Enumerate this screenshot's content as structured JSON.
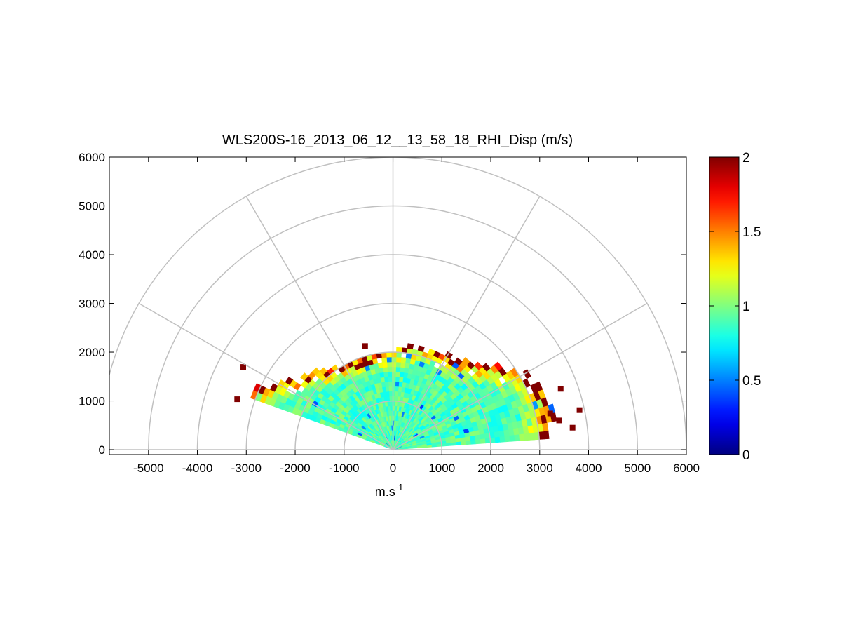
{
  "chart_data": {
    "type": "heatmap",
    "subtype": "polar RHI sector plot",
    "title": "WLS200S-16_2013_06_12__13_58_18_RHI_Disp (m/s)",
    "xlabel": "m.s",
    "xlabel_superscript": "-1",
    "ylabel": "",
    "xlim": [
      -5800,
      6000
    ],
    "ylim": [
      -100,
      6000
    ],
    "x_ticks": [
      "-5000",
      "-4000",
      "-3000",
      "-2000",
      "-1000",
      "0",
      "1000",
      "2000",
      "3000",
      "4000",
      "5000",
      "6000"
    ],
    "x_tick_values": [
      -5000,
      -4000,
      -3000,
      -2000,
      -1000,
      0,
      1000,
      2000,
      3000,
      4000,
      5000,
      6000
    ],
    "y_ticks": [
      "0",
      "1000",
      "2000",
      "3000",
      "4000",
      "5000",
      "6000"
    ],
    "y_tick_values": [
      0,
      1000,
      2000,
      3000,
      4000,
      5000,
      6000
    ],
    "polar_grid": {
      "ring_radii": [
        1000,
        2000,
        3000,
        4000,
        5000,
        6000
      ],
      "spoke_angles_deg": [
        0,
        30,
        60,
        90,
        120,
        150,
        180
      ],
      "color": "#c0c0c0"
    },
    "colorbar": {
      "colormap": "jet",
      "range": [
        0,
        2
      ],
      "ticks": [
        "0",
        "0.5",
        "1",
        "1.5",
        "2"
      ],
      "tick_values": [
        0,
        0.5,
        1,
        1.5,
        2
      ]
    },
    "scan_sector": {
      "elevation_min_deg": 4,
      "elevation_max_deg": 160,
      "typical_value": 0.9,
      "high_value_edge": 2
    },
    "sector_outer_ranges_m": [
      {
        "elevation_deg": 4,
        "range_m": 3100
      },
      {
        "elevation_deg": 15,
        "range_m": 3400
      },
      {
        "elevation_deg": 30,
        "range_m": 3100
      },
      {
        "elevation_deg": 45,
        "range_m": 2400
      },
      {
        "elevation_deg": 60,
        "range_m": 2200
      },
      {
        "elevation_deg": 75,
        "range_m": 2200
      },
      {
        "elevation_deg": 88,
        "range_m": 2000
      },
      {
        "elevation_deg": 100,
        "range_m": 1950
      },
      {
        "elevation_deg": 115,
        "range_m": 1900
      },
      {
        "elevation_deg": 130,
        "range_m": 2100
      },
      {
        "elevation_deg": 145,
        "range_m": 2450
      },
      {
        "elevation_deg": 155,
        "range_m": 3000
      },
      {
        "elevation_deg": 160,
        "range_m": 3100
      }
    ]
  }
}
